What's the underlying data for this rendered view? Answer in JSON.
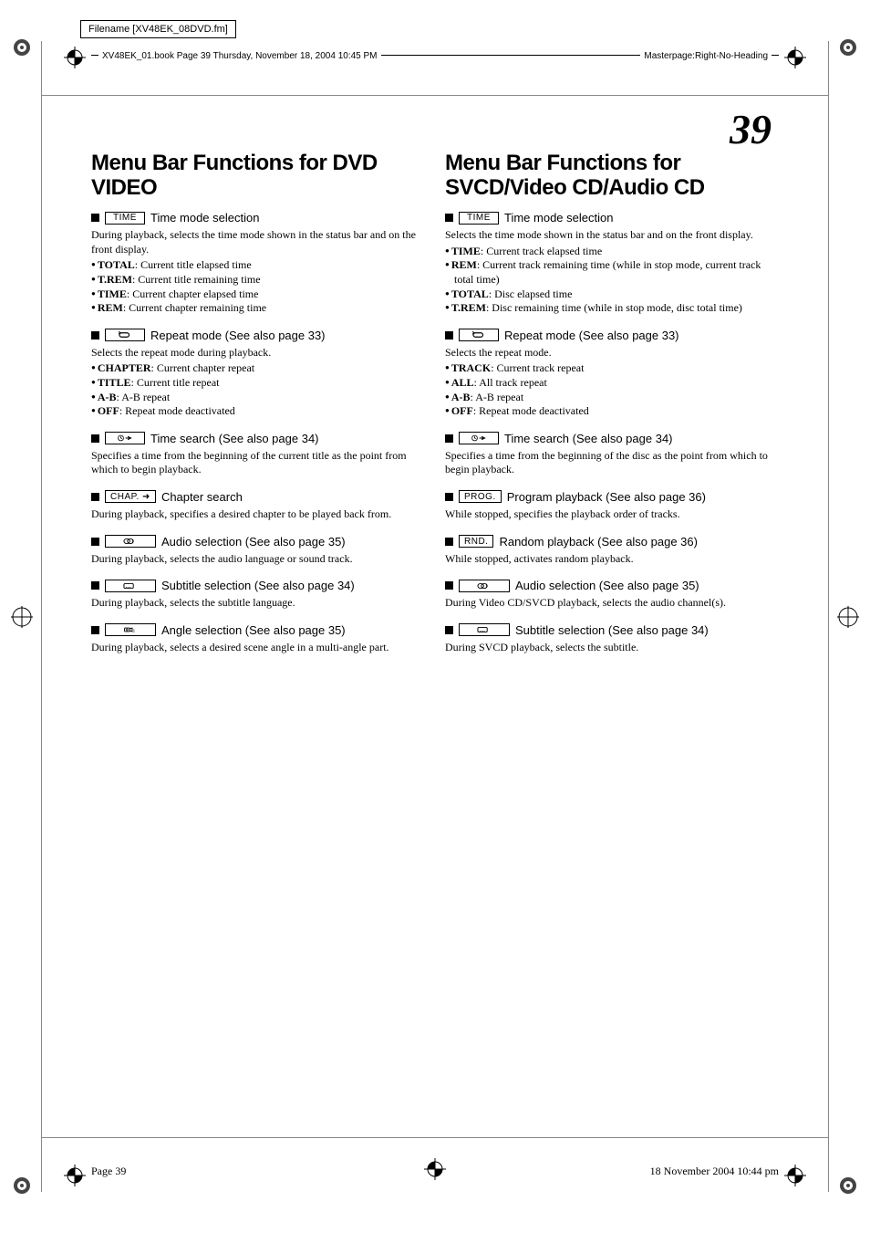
{
  "colors": {
    "text": "#000000",
    "bg": "#ffffff",
    "crop": "#888888"
  },
  "typography": {
    "body_family": "Georgia, serif",
    "ui_family": "Arial, Helvetica, sans-serif",
    "heading_size_pt": 24,
    "heading_weight": 900,
    "item_title_size_pt": 13,
    "body_size_pt": 12,
    "page_number_size_pt": 46,
    "page_number_style": "italic bold"
  },
  "header": {
    "filename": "Filename [XV48EK_08DVD.fm]",
    "left": "XV48EK_01.book  Page 39  Thursday, November 18, 2004  10:45 PM",
    "right": "Masterpage:Right-No-Heading"
  },
  "page_number": "39",
  "footer": {
    "left": "Page 39",
    "right": "18 November 2004 10:44 pm"
  },
  "left_col": {
    "heading": "Menu Bar Functions for DVD VIDEO",
    "items": [
      {
        "icon_type": "text",
        "icon": "TIME",
        "icon_width": "med",
        "title": "Time mode selection",
        "body": "During playback, selects the time mode shown in the status bar and on the front display.",
        "bullets": [
          {
            "term": "TOTAL",
            "desc": ": Current title elapsed time"
          },
          {
            "term": "T.REM",
            "desc": ": Current title remaining time"
          },
          {
            "term": "TIME",
            "desc": ": Current chapter elapsed time"
          },
          {
            "term": "REM",
            "desc": ": Current chapter remaining time"
          }
        ]
      },
      {
        "icon_type": "svg",
        "icon": "repeat",
        "icon_width": "med",
        "title": "Repeat mode (See also page 33)",
        "body": "Selects the repeat mode during playback.",
        "bullets": [
          {
            "term": "CHAPTER",
            "desc": ": Current chapter repeat"
          },
          {
            "term": "TITLE",
            "desc": ": Current title repeat"
          },
          {
            "term": "A-B",
            "desc": ": A-B repeat"
          },
          {
            "term": "OFF",
            "desc": ": Repeat mode deactivated"
          }
        ]
      },
      {
        "icon_type": "svg",
        "icon": "timesearch",
        "icon_width": "med",
        "title": "Time search (See also page 34)",
        "body": "Specifies a time from the beginning of the current title as the point from which to begin playback."
      },
      {
        "icon_type": "text",
        "icon": "CHAP. ➜",
        "icon_width": "med",
        "title": "Chapter search",
        "body": "During playback, specifies a desired chapter to be played back from."
      },
      {
        "icon_type": "svg",
        "icon": "audio",
        "icon_width": "wide",
        "title": "Audio selection (See also page 35)",
        "body": "During playback, selects the audio language or sound track."
      },
      {
        "icon_type": "svg",
        "icon": "subtitle",
        "icon_width": "wide",
        "title": "Subtitle selection (See also page 34)",
        "body": "During playback, selects the subtitle language."
      },
      {
        "icon_type": "svg",
        "icon": "angle",
        "icon_width": "wide",
        "title": "Angle selection (See also page 35)",
        "body": "During playback, selects a desired scene angle in a multi-angle part."
      }
    ]
  },
  "right_col": {
    "heading": "Menu Bar Functions for SVCD/Video CD/Audio CD",
    "items": [
      {
        "icon_type": "text",
        "icon": "TIME",
        "icon_width": "med",
        "title": "Time mode selection",
        "body": "Selects the time mode shown in the status bar and on the front display.",
        "bullets": [
          {
            "term": "TIME",
            "desc": ": Current track elapsed time"
          },
          {
            "term": "REM",
            "desc": ": Current track remaining time (while in stop mode, current track total time)"
          },
          {
            "term": "TOTAL",
            "desc": ": Disc elapsed time"
          },
          {
            "term": "T.REM",
            "desc": ": Disc remaining time (while in stop mode, disc total time)"
          }
        ]
      },
      {
        "icon_type": "svg",
        "icon": "repeat",
        "icon_width": "med",
        "title": "Repeat mode (See also page 33)",
        "body": "Selects the repeat mode.",
        "bullets": [
          {
            "term": "TRACK",
            "desc": ": Current track repeat"
          },
          {
            "term": "ALL",
            "desc": ": All track repeat"
          },
          {
            "term": "A-B",
            "desc": ": A-B repeat"
          },
          {
            "term": "OFF",
            "desc": ": Repeat mode deactivated"
          }
        ]
      },
      {
        "icon_type": "svg",
        "icon": "timesearch",
        "icon_width": "med",
        "title": "Time search (See also page 34)",
        "body": "Specifies a time from the beginning of the disc as the point from which to begin playback."
      },
      {
        "icon_type": "text",
        "icon": "PROG.",
        "icon_width": "",
        "title": "Program playback (See also page 36)",
        "body": "While stopped, specifies the playback order of tracks."
      },
      {
        "icon_type": "text",
        "icon": "RND.",
        "icon_width": "",
        "title": "Random playback (See also page 36)",
        "body": "While stopped, activates random playback."
      },
      {
        "icon_type": "svg",
        "icon": "audio",
        "icon_width": "wide",
        "title": "Audio selection (See also page 35)",
        "body": "During Video CD/SVCD playback, selects the audio channel(s)."
      },
      {
        "icon_type": "svg",
        "icon": "subtitle",
        "icon_width": "wide",
        "title": "Subtitle selection (See also page 34)",
        "body": "During SVCD playback, selects the subtitle."
      }
    ]
  }
}
